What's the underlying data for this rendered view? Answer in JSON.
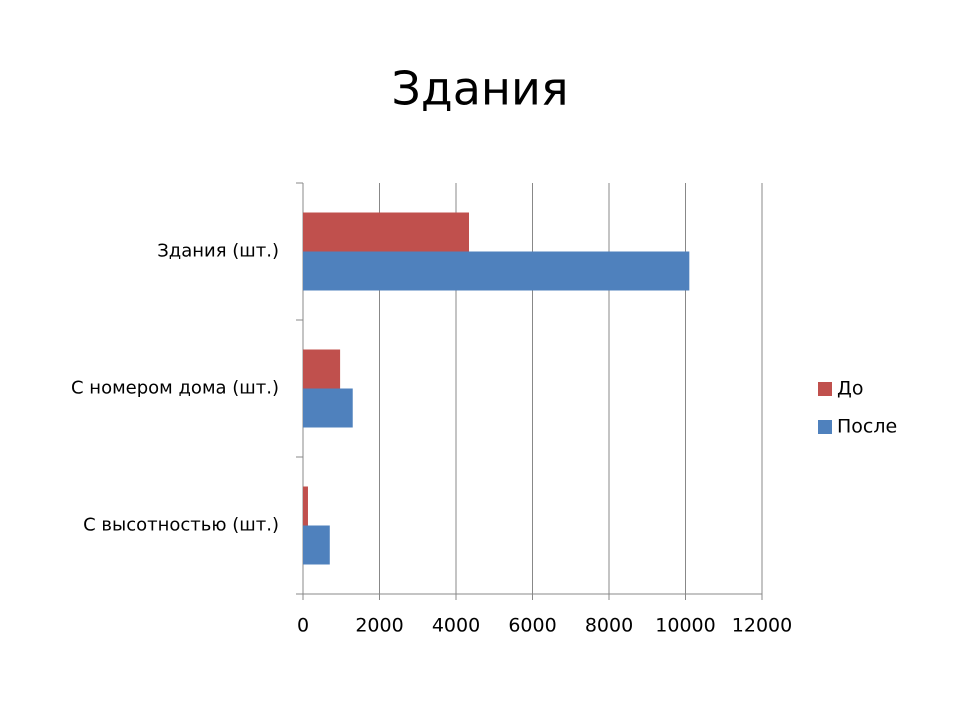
{
  "chart_data": {
    "type": "bar",
    "orientation": "horizontal",
    "title": "Здания",
    "categories": [
      "Здания (шт.)",
      "С номером дома (шт.)",
      "С высотностью (шт.)"
    ],
    "series": [
      {
        "name": "До",
        "color": "#c0504d",
        "values": [
          4340,
          970,
          130
        ]
      },
      {
        "name": "После",
        "color": "#4f81bd",
        "values": [
          10100,
          1300,
          700
        ]
      }
    ],
    "xlim": [
      0,
      12000
    ],
    "xticks": [
      0,
      2000,
      4000,
      6000,
      8000,
      10000,
      12000
    ],
    "grid": true,
    "legend": "right"
  }
}
